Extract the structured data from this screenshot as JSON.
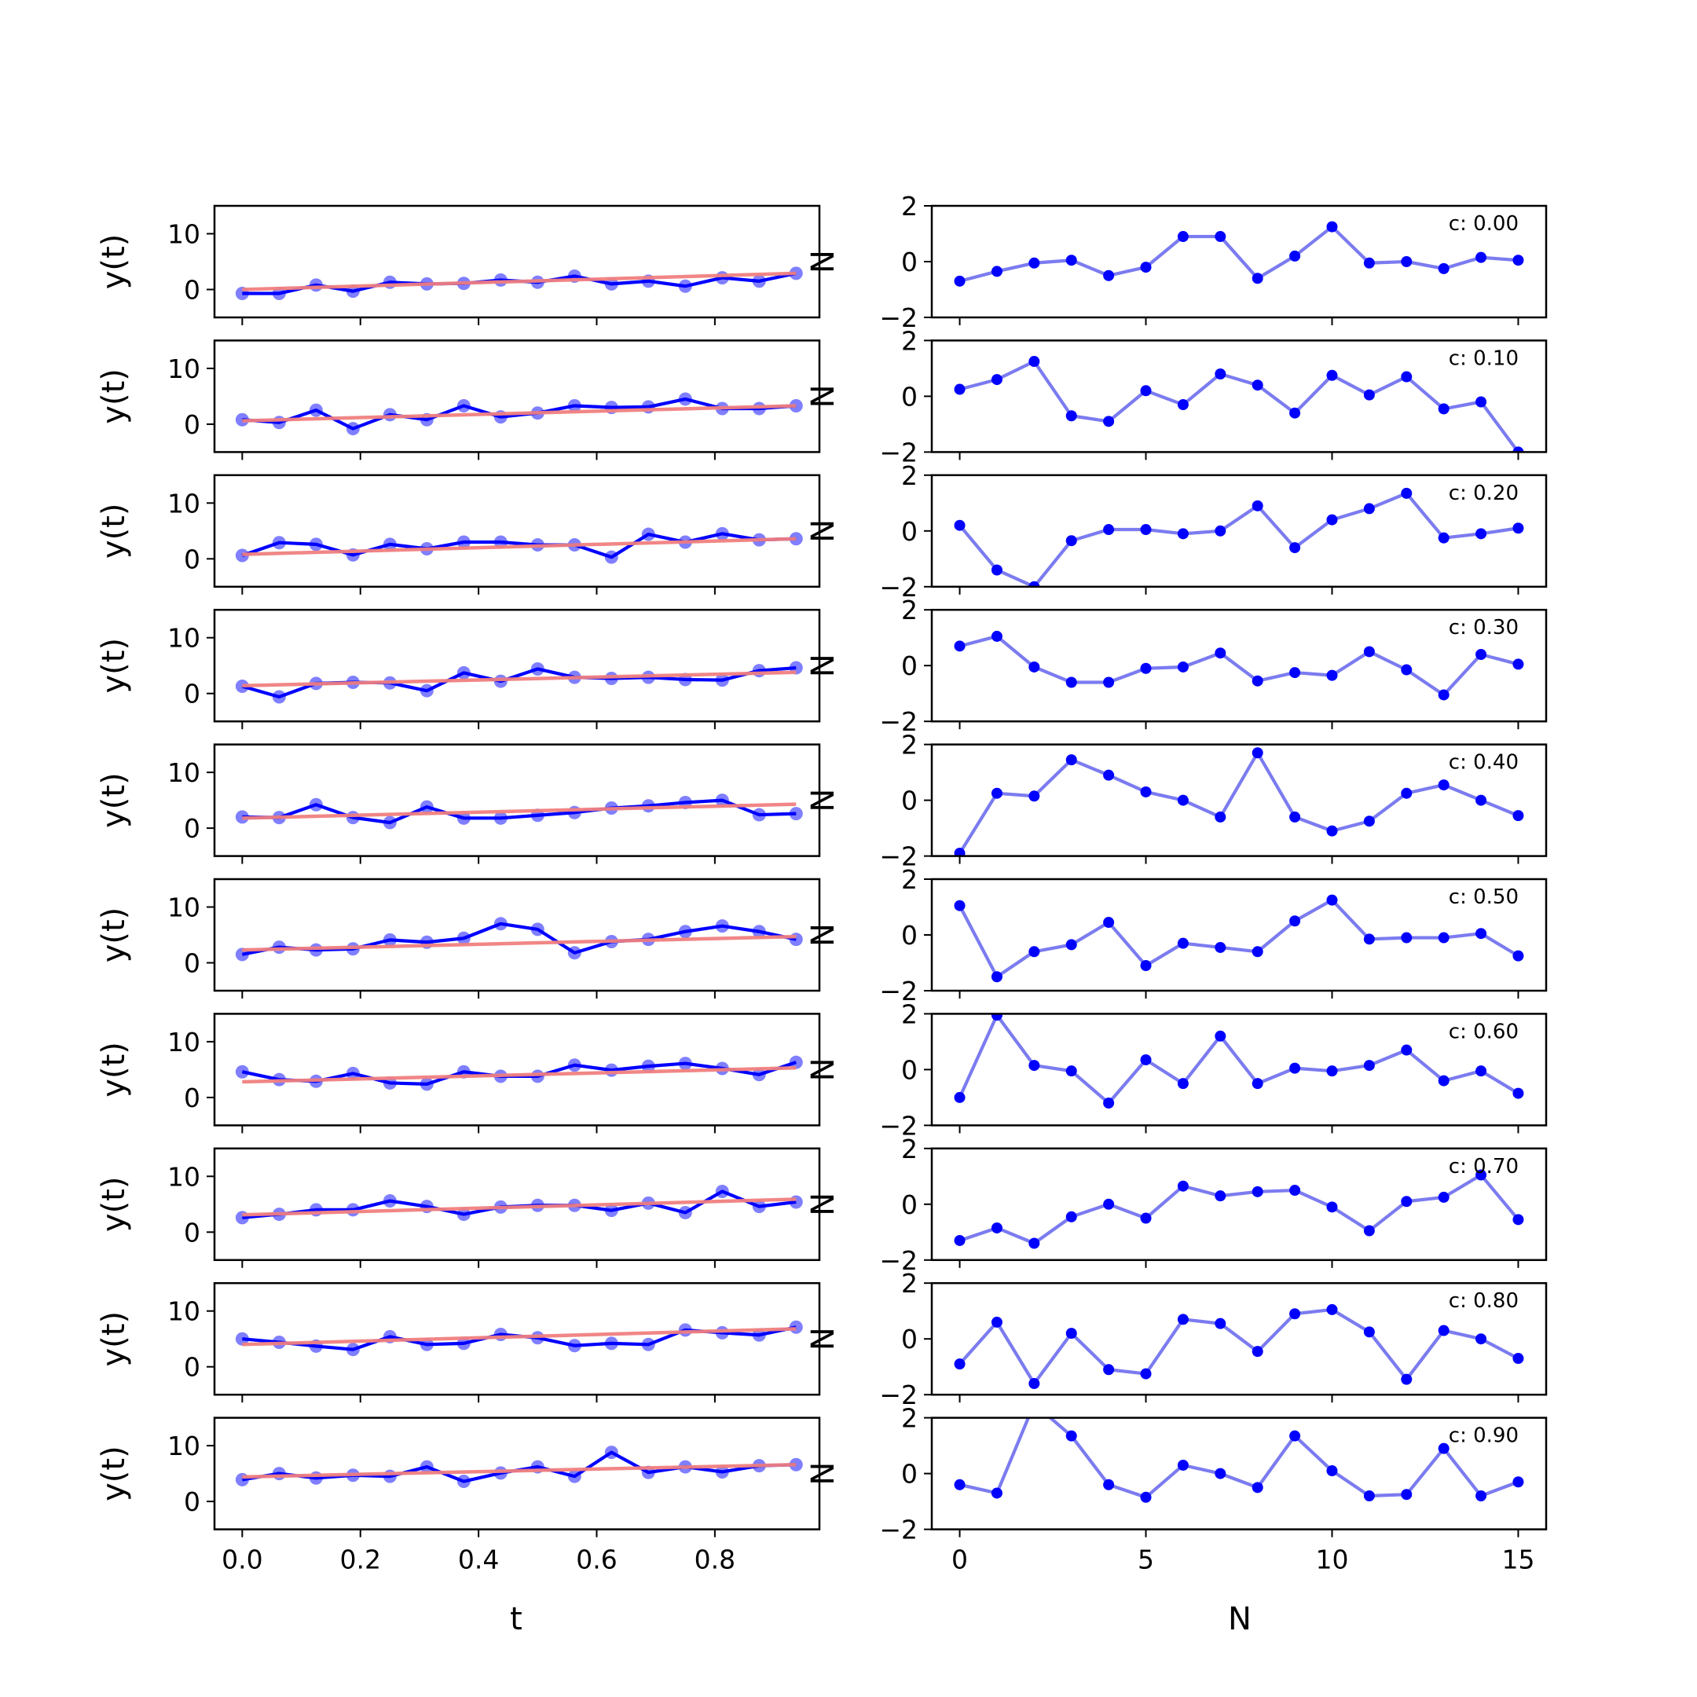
{
  "chart_data": {
    "type": "line",
    "figure": {
      "left_xlabel": "t",
      "right_xlabel": "N"
    },
    "left_axes": {
      "ylabel": "y(t)",
      "xlim": [
        -0.047,
        0.977
      ],
      "ylim": [
        -5,
        15
      ],
      "xticks": [
        0.0,
        0.2,
        0.4,
        0.6,
        0.8
      ],
      "xtick_labels": [
        "0.0",
        "0.2",
        "0.4",
        "0.6",
        "0.8"
      ],
      "yticks": [
        0,
        10
      ],
      "ytick_labels": [
        "0",
        "10"
      ],
      "x": [
        0,
        0.0625,
        0.125,
        0.1875,
        0.25,
        0.3125,
        0.375,
        0.4375,
        0.5,
        0.5625,
        0.625,
        0.6875,
        0.75,
        0.8125,
        0.875,
        0.9375
      ],
      "colors": {
        "observed": "#0000ff",
        "trend": "#f08080"
      }
    },
    "right_axes": {
      "ylabel": "N",
      "xlim": [
        -0.75,
        15.75
      ],
      "ylim": [
        -2,
        2
      ],
      "xticks": [
        0,
        5,
        10,
        15
      ],
      "xtick_labels": [
        "0",
        "5",
        "10",
        "15"
      ],
      "yticks": [
        -2,
        0,
        2
      ],
      "ytick_labels": [
        "−2",
        "0",
        "2"
      ],
      "x": [
        0,
        1,
        2,
        3,
        4,
        5,
        6,
        7,
        8,
        9,
        10,
        11,
        12,
        13,
        14,
        15
      ],
      "colors": {
        "line": "#7b7bf0",
        "marker": "#0000ff"
      }
    },
    "rows": [
      {
        "label": "c: 0.00",
        "trend": [
          0.0,
          2.9
        ],
        "y": [
          -0.7,
          -0.7,
          0.8,
          -0.3,
          1.3,
          1.0,
          1.1,
          1.7,
          1.3,
          2.4,
          1.0,
          1.5,
          0.6,
          2.1,
          1.5,
          2.9
        ],
        "noise": [
          -0.7,
          -0.35,
          -0.05,
          0.05,
          -0.5,
          -0.2,
          0.9,
          0.9,
          -0.6,
          0.2,
          1.25,
          -0.05,
          0.0,
          -0.25,
          0.15,
          0.05
        ]
      },
      {
        "label": "c: 0.10",
        "trend": [
          0.6,
          3.3
        ],
        "y": [
          0.8,
          0.3,
          2.5,
          -0.8,
          1.7,
          0.8,
          3.3,
          1.3,
          2.0,
          3.3,
          3.0,
          3.1,
          4.5,
          2.8,
          2.8,
          3.3
        ],
        "noise": [
          0.25,
          0.6,
          1.25,
          -0.7,
          -0.9,
          0.2,
          -0.3,
          0.8,
          0.4,
          -0.6,
          0.75,
          0.05,
          0.7,
          -0.45,
          -0.2,
          -2.0
        ]
      },
      {
        "label": "c: 0.20",
        "trend": [
          0.8,
          3.6
        ],
        "y": [
          0.6,
          2.9,
          2.6,
          0.7,
          2.6,
          1.8,
          3.0,
          3.0,
          2.5,
          2.5,
          0.3,
          4.4,
          3.0,
          4.5,
          3.4,
          3.6
        ],
        "noise": [
          0.2,
          -1.4,
          -2.0,
          -0.35,
          0.05,
          0.05,
          -0.1,
          0.0,
          0.9,
          -0.6,
          0.4,
          0.8,
          1.35,
          -0.25,
          -0.1,
          0.1
        ]
      },
      {
        "label": "c: 0.30",
        "trend": [
          1.4,
          3.8
        ],
        "y": [
          1.3,
          -0.6,
          1.8,
          2.0,
          1.9,
          0.5,
          3.7,
          2.2,
          4.4,
          2.9,
          2.7,
          2.9,
          2.5,
          2.4,
          4.1,
          4.6
        ],
        "noise": [
          0.7,
          1.05,
          -0.05,
          -0.6,
          -0.6,
          -0.1,
          -0.05,
          0.45,
          -0.55,
          -0.25,
          -0.35,
          0.5,
          -0.15,
          -1.05,
          0.4,
          0.05
        ]
      },
      {
        "label": "c: 0.40",
        "trend": [
          1.8,
          4.3
        ],
        "y": [
          2.0,
          1.9,
          4.2,
          1.9,
          1.0,
          3.8,
          1.8,
          1.8,
          2.3,
          2.8,
          3.6,
          4.0,
          4.6,
          5.0,
          2.4,
          2.6
        ],
        "noise": [
          -1.9,
          0.25,
          0.15,
          1.45,
          0.9,
          0.3,
          0.0,
          -0.6,
          1.7,
          -0.6,
          -1.1,
          -0.75,
          0.25,
          0.55,
          0.0,
          -0.55
        ]
      },
      {
        "label": "c: 0.50",
        "trend": [
          2.3,
          4.7
        ],
        "y": [
          1.5,
          2.8,
          2.3,
          2.5,
          4.1,
          3.7,
          4.4,
          7.0,
          6.0,
          1.8,
          3.8,
          4.2,
          5.6,
          6.6,
          5.6,
          4.2
        ],
        "noise": [
          1.05,
          -1.5,
          -0.6,
          -0.35,
          0.45,
          -1.1,
          -0.3,
          -0.45,
          -0.6,
          0.5,
          1.25,
          -0.15,
          -0.1,
          -0.1,
          0.05,
          -0.75
        ]
      },
      {
        "label": "c: 0.60",
        "trend": [
          2.8,
          5.3
        ],
        "y": [
          4.6,
          3.2,
          2.9,
          4.3,
          2.6,
          2.4,
          4.6,
          3.8,
          3.8,
          5.8,
          4.9,
          5.6,
          6.1,
          5.2,
          4.1,
          6.3
        ],
        "noise": [
          -1.0,
          1.95,
          0.15,
          -0.05,
          -1.2,
          0.35,
          -0.5,
          1.2,
          -0.5,
          0.05,
          -0.05,
          0.15,
          0.7,
          -0.4,
          -0.05,
          -0.85
        ]
      },
      {
        "label": "c: 0.70",
        "trend": [
          3.1,
          5.9
        ],
        "y": [
          2.6,
          3.2,
          4.0,
          4.0,
          5.6,
          4.6,
          3.2,
          4.5,
          4.8,
          4.8,
          3.9,
          5.2,
          3.5,
          7.3,
          4.6,
          5.4
        ],
        "noise": [
          -1.3,
          -0.85,
          -1.4,
          -0.45,
          0.0,
          -0.5,
          0.65,
          0.3,
          0.45,
          0.5,
          -0.1,
          -0.95,
          0.1,
          0.25,
          1.05,
          -0.55
        ]
      },
      {
        "label": "c: 0.80",
        "trend": [
          4.0,
          6.8
        ],
        "y": [
          5.0,
          4.4,
          3.7,
          3.1,
          5.4,
          4.0,
          4.2,
          5.8,
          5.2,
          3.8,
          4.2,
          4.0,
          6.6,
          6.1,
          5.7,
          7.1
        ],
        "noise": [
          -0.9,
          0.6,
          -1.6,
          0.2,
          -1.1,
          -1.25,
          0.7,
          0.55,
          -0.45,
          0.9,
          1.05,
          0.25,
          -1.45,
          0.3,
          0.0,
          -0.7
        ]
      },
      {
        "label": "c: 0.90",
        "trend": [
          4.4,
          6.6
        ],
        "y": [
          3.9,
          5.0,
          4.2,
          4.7,
          4.5,
          6.2,
          3.6,
          5.1,
          6.2,
          4.5,
          8.8,
          5.2,
          6.2,
          5.3,
          6.4,
          6.6
        ],
        "noise": [
          -0.4,
          -0.7,
          2.5,
          1.35,
          -0.4,
          -0.85,
          0.3,
          0.0,
          -0.5,
          1.35,
          0.1,
          -0.8,
          -0.75,
          0.9,
          -0.8,
          -0.3
        ]
      }
    ]
  }
}
